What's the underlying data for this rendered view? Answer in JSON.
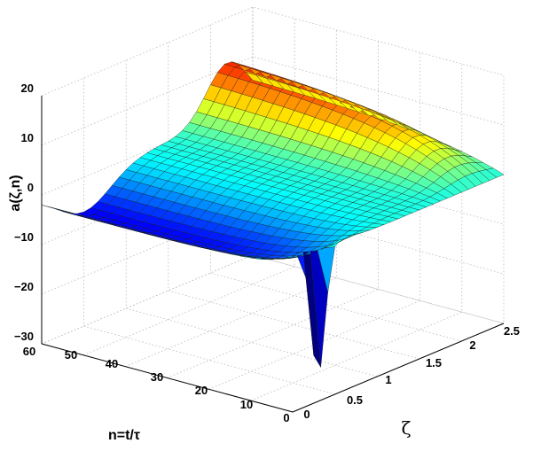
{
  "chart_data": {
    "type": "surface",
    "zlabel": "a(ζ,n)",
    "ylabel": "n=t/τ",
    "xlabel": "ζ",
    "x_ticks": [
      "0",
      "0.5",
      "1",
      "1.5",
      "2",
      "2.5"
    ],
    "y_ticks": [
      "0",
      "10",
      "20",
      "30",
      "40",
      "50",
      "60"
    ],
    "z_ticks": [
      "−30",
      "−20",
      "−10",
      "0",
      "10",
      "20"
    ],
    "xlim": [
      0,
      2.5
    ],
    "ylim": [
      0,
      60
    ],
    "zlim": [
      -30,
      20
    ],
    "grid": true,
    "colormap": "jet",
    "surface": {
      "far_edge_level": 0,
      "ridge_near_zeta": 2.2,
      "ridge_peak": 12,
      "trough_near_zeta": 0.5,
      "trough_depth": -7,
      "spike_max": 4,
      "spike_min": -28
    }
  }
}
